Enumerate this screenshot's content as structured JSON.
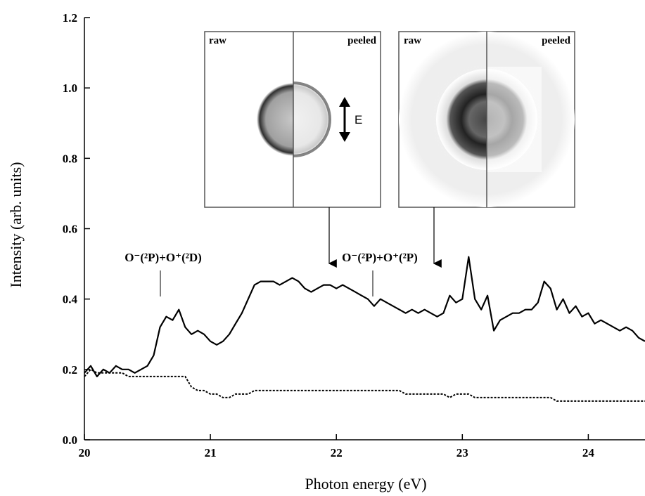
{
  "chart_data": {
    "type": "line",
    "xlabel": "Photon energy (eV)",
    "ylabel": "Intensity (arb. units)",
    "xlim": [
      20,
      24.45
    ],
    "ylim": [
      0,
      1.2
    ],
    "xticks": [
      20,
      21,
      22,
      23,
      24
    ],
    "yticks": [
      {
        "value": 0,
        "label": "0.0"
      },
      0.2,
      0.4,
      0.6,
      0.8,
      {
        "value": 1,
        "label": "1.0"
      },
      1.2
    ],
    "x": [
      20,
      20.05,
      20.1,
      20.15,
      20.2,
      20.25,
      20.3,
      20.35,
      20.4,
      20.45,
      20.5,
      20.55,
      20.6,
      20.65,
      20.7,
      20.75,
      20.8,
      20.85,
      20.9,
      20.95,
      21,
      21.05,
      21.1,
      21.15,
      21.2,
      21.25,
      21.3,
      21.35,
      21.4,
      21.45,
      21.5,
      21.55,
      21.6,
      21.65,
      21.7,
      21.75,
      21.8,
      21.85,
      21.9,
      21.95,
      22,
      22.05,
      22.1,
      22.15,
      22.2,
      22.25,
      22.3,
      22.35,
      22.4,
      22.45,
      22.5,
      22.55,
      22.6,
      22.65,
      22.7,
      22.75,
      22.8,
      22.85,
      22.9,
      22.95,
      23,
      23.05,
      23.1,
      23.15,
      23.2,
      23.25,
      23.3,
      23.35,
      23.4,
      23.45,
      23.5,
      23.55,
      23.6,
      23.65,
      23.7,
      23.75,
      23.8,
      23.85,
      23.9,
      23.95,
      24,
      24.05,
      24.1,
      24.15,
      24.2,
      24.25,
      24.3,
      24.35,
      24.4,
      24.45
    ],
    "series": [
      {
        "color": "#000000",
        "style": "solid",
        "values": [
          0.19,
          0.21,
          0.18,
          0.2,
          0.19,
          0.21,
          0.2,
          0.2,
          0.19,
          0.2,
          0.21,
          0.24,
          0.32,
          0.35,
          0.34,
          0.37,
          0.32,
          0.3,
          0.31,
          0.3,
          0.28,
          0.27,
          0.28,
          0.3,
          0.33,
          0.36,
          0.4,
          0.44,
          0.45,
          0.45,
          0.45,
          0.44,
          0.45,
          0.46,
          0.45,
          0.43,
          0.42,
          0.43,
          0.44,
          0.44,
          0.43,
          0.44,
          0.43,
          0.42,
          0.41,
          0.4,
          0.38,
          0.4,
          0.39,
          0.38,
          0.37,
          0.36,
          0.37,
          0.36,
          0.37,
          0.36,
          0.35,
          0.36,
          0.41,
          0.39,
          0.4,
          0.52,
          0.4,
          0.37,
          0.41,
          0.31,
          0.34,
          0.35,
          0.36,
          0.36,
          0.37,
          0.37,
          0.39,
          0.45,
          0.43,
          0.37,
          0.4,
          0.36,
          0.38,
          0.35,
          0.36,
          0.33,
          0.34,
          0.33,
          0.32,
          0.31,
          0.32,
          0.31,
          0.29,
          0.28
        ]
      },
      {
        "color": "#000000",
        "style": "dotted",
        "values": [
          0.18,
          0.2,
          0.19,
          0.19,
          0.19,
          0.19,
          0.19,
          0.18,
          0.18,
          0.18,
          0.18,
          0.18,
          0.18,
          0.18,
          0.18,
          0.18,
          0.18,
          0.15,
          0.14,
          0.14,
          0.13,
          0.13,
          0.12,
          0.12,
          0.13,
          0.13,
          0.13,
          0.14,
          0.14,
          0.14,
          0.14,
          0.14,
          0.14,
          0.14,
          0.14,
          0.14,
          0.14,
          0.14,
          0.14,
          0.14,
          0.14,
          0.14,
          0.14,
          0.14,
          0.14,
          0.14,
          0.14,
          0.14,
          0.14,
          0.14,
          0.14,
          0.13,
          0.13,
          0.13,
          0.13,
          0.13,
          0.13,
          0.13,
          0.12,
          0.13,
          0.13,
          0.13,
          0.12,
          0.12,
          0.12,
          0.12,
          0.12,
          0.12,
          0.12,
          0.12,
          0.12,
          0.12,
          0.12,
          0.12,
          0.12,
          0.11,
          0.11,
          0.11,
          0.11,
          0.11,
          0.11,
          0.11,
          0.11,
          0.11,
          0.11,
          0.11,
          0.11,
          0.11,
          0.11,
          0.11
        ]
      }
    ],
    "annotations": [
      "O⁻(²P)+O⁺(²D)",
      "O⁻(²P)+O⁺(²P)"
    ],
    "insets": [
      {
        "left": "raw",
        "right": "peeled",
        "arrow": "E"
      },
      {
        "left": "raw",
        "right": "peeled"
      }
    ]
  }
}
